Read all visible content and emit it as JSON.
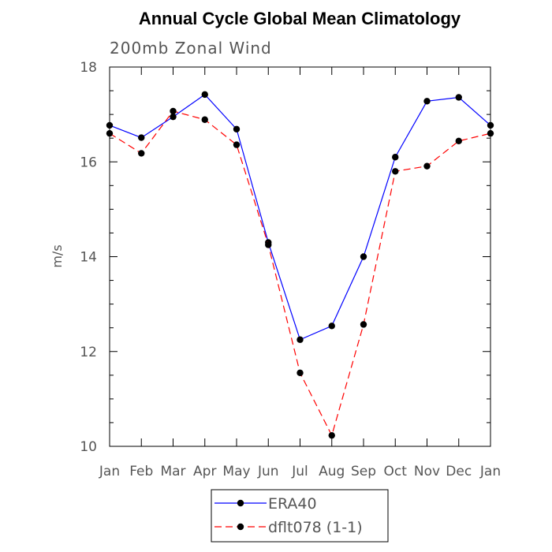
{
  "chart_data": {
    "type": "line",
    "title": "Annual Cycle Global Mean Climatology",
    "subtitle": "200mb Zonal Wind",
    "xlabel": "",
    "ylabel": "m/s",
    "categories": [
      "Jan",
      "Feb",
      "Mar",
      "Apr",
      "May",
      "Jun",
      "Jul",
      "Aug",
      "Sep",
      "Oct",
      "Nov",
      "Dec",
      "Jan"
    ],
    "ylim": [
      10,
      18
    ],
    "yticks": [
      10,
      12,
      14,
      16,
      18
    ],
    "series": [
      {
        "name": "ERA40",
        "color": "#0000ff",
        "dash": "solid",
        "values": [
          16.77,
          16.51,
          16.95,
          17.42,
          16.69,
          14.3,
          12.25,
          12.54,
          14.0,
          16.1,
          17.28,
          17.36,
          16.77
        ]
      },
      {
        "name": "dflt078 (1-1)",
        "color": "#ff0000",
        "dash": "dashed",
        "values": [
          16.6,
          16.18,
          17.07,
          16.89,
          16.36,
          14.25,
          11.55,
          10.23,
          12.57,
          15.8,
          15.91,
          16.44,
          16.6
        ]
      }
    ],
    "marker_color": "#000000",
    "legend_position": "bottom-center"
  }
}
